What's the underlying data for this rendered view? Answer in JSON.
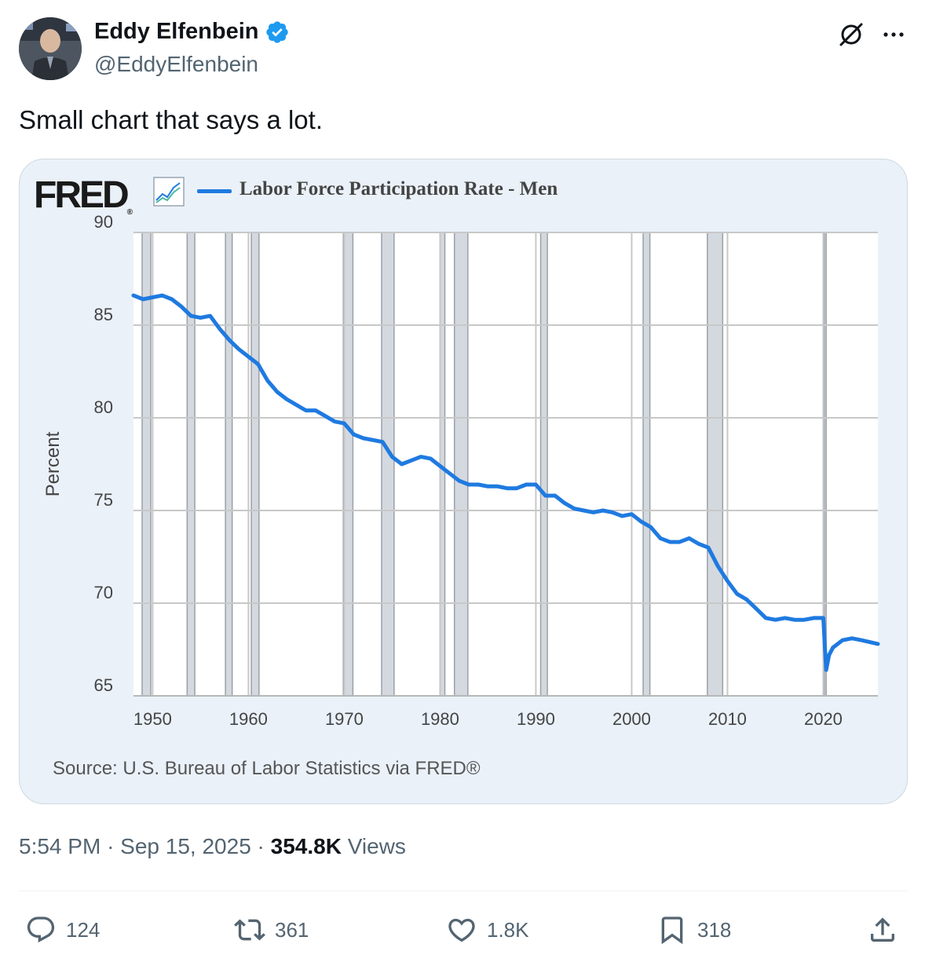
{
  "author": {
    "display_name": "Eddy Elfenbein",
    "handle": "@EddyElfenbein",
    "verified": true,
    "verified_color": "#1d9bf0"
  },
  "tweet": {
    "text": "Small chart that says a lot."
  },
  "chart_card": {
    "logo": "FRED",
    "legend_label": "Labor Force Participation Rate - Men",
    "line_color": "#1f7ae0",
    "source": "Source: U.S. Bureau of Labor Statistics via FRED®"
  },
  "chart_data": {
    "type": "line",
    "title": "",
    "ylabel": "Percent",
    "xlabel": "",
    "xlim": [
      1948,
      2025.7
    ],
    "ylim": [
      65,
      90
    ],
    "x_ticks": [
      1950,
      1960,
      1970,
      1980,
      1990,
      2000,
      2010,
      2020
    ],
    "y_ticks": [
      65,
      70,
      75,
      80,
      85,
      90
    ],
    "grid": true,
    "legend_placement": "top",
    "series": [
      {
        "name": "Labor Force Participation Rate - Men",
        "x": [
          1948,
          1949,
          1950,
          1951,
          1952,
          1953,
          1954,
          1955,
          1956,
          1957,
          1958,
          1959,
          1960,
          1961,
          1962,
          1963,
          1964,
          1965,
          1966,
          1967,
          1968,
          1969,
          1970,
          1971,
          1972,
          1973,
          1974,
          1975,
          1976,
          1977,
          1978,
          1979,
          1980,
          1981,
          1982,
          1983,
          1984,
          1985,
          1986,
          1987,
          1988,
          1989,
          1990,
          1991,
          1992,
          1993,
          1994,
          1995,
          1996,
          1997,
          1998,
          1999,
          2000,
          2001,
          2002,
          2003,
          2004,
          2005,
          2006,
          2007,
          2008,
          2009,
          2010,
          2011,
          2012,
          2013,
          2014,
          2015,
          2016,
          2017,
          2018,
          2019,
          2020.0,
          2020.3,
          2020.6,
          2021,
          2022,
          2023,
          2024,
          2025.7
        ],
        "values": [
          86.6,
          86.4,
          86.5,
          86.6,
          86.4,
          86.0,
          85.5,
          85.4,
          85.5,
          84.8,
          84.2,
          83.7,
          83.3,
          82.9,
          82.0,
          81.4,
          81.0,
          80.7,
          80.4,
          80.4,
          80.1,
          79.8,
          79.7,
          79.1,
          78.9,
          78.8,
          78.7,
          77.9,
          77.5,
          77.7,
          77.9,
          77.8,
          77.4,
          77.0,
          76.6,
          76.4,
          76.4,
          76.3,
          76.3,
          76.2,
          76.2,
          76.4,
          76.4,
          75.8,
          75.8,
          75.4,
          75.1,
          75.0,
          74.9,
          75.0,
          74.9,
          74.7,
          74.8,
          74.4,
          74.1,
          73.5,
          73.3,
          73.3,
          73.5,
          73.2,
          73.0,
          72.0,
          71.2,
          70.5,
          70.2,
          69.7,
          69.2,
          69.1,
          69.2,
          69.1,
          69.1,
          69.2,
          69.2,
          66.4,
          67.2,
          67.6,
          68.0,
          68.1,
          68.0,
          67.8
        ]
      }
    ],
    "recessions": [
      [
        1948.9,
        1949.8
      ],
      [
        1953.6,
        1954.4
      ],
      [
        1957.6,
        1958.3
      ],
      [
        1960.3,
        1961.1
      ],
      [
        1969.9,
        1970.9
      ],
      [
        1973.9,
        1975.2
      ],
      [
        1980.0,
        1980.5
      ],
      [
        1981.5,
        1982.9
      ],
      [
        1990.5,
        1991.2
      ],
      [
        2001.2,
        2001.9
      ],
      [
        2007.9,
        2009.5
      ],
      [
        2020.1,
        2020.3
      ]
    ]
  },
  "timestamp": {
    "time": "5:54 PM",
    "date": "Sep 15, 2025",
    "separator": "·",
    "views_count": "354.8K",
    "views_label": "Views"
  },
  "actions": {
    "replies": "124",
    "reposts": "361",
    "likes": "1.8K",
    "bookmarks": "318"
  }
}
